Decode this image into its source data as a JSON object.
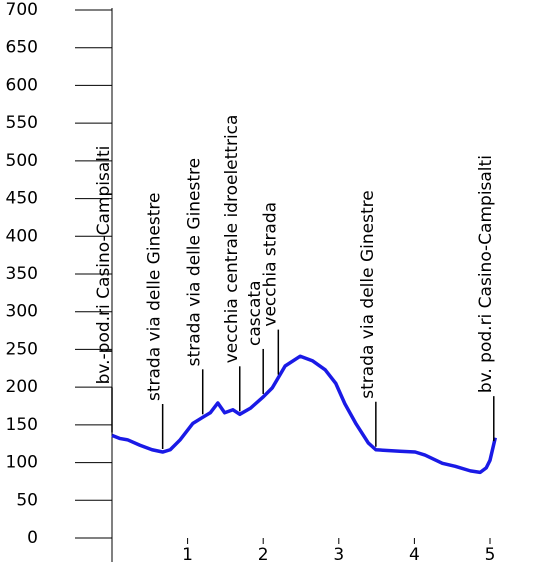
{
  "chart_data": {
    "type": "line",
    "x": [
      0,
      0.1,
      0.21,
      0.37,
      0.53,
      0.67,
      0.77,
      0.9,
      1.07,
      1.2,
      1.3,
      1.4,
      1.49,
      1.6,
      1.69,
      1.83,
      2.0,
      2.12,
      2.29,
      2.49,
      2.65,
      2.82,
      2.96,
      3.08,
      3.23,
      3.39,
      3.49,
      3.81,
      4.01,
      4.14,
      4.37,
      4.54,
      4.74,
      4.87,
      4.95,
      5.0,
      5.07
    ],
    "values": [
      136,
      132,
      130,
      123,
      117,
      114,
      117,
      130,
      152,
      160,
      166,
      179,
      166,
      170,
      164,
      172,
      187,
      199,
      228,
      241,
      235,
      223,
      205,
      178,
      151,
      126,
      117,
      115,
      114,
      110,
      99,
      95,
      89,
      87,
      93,
      103,
      133
    ],
    "color": "#1a1ae6",
    "xlim": [
      0,
      5.6
    ],
    "xticks": [
      1,
      2,
      3,
      4,
      5
    ],
    "ylim": [
      0,
      700
    ],
    "yticks": [
      0,
      50,
      100,
      150,
      200,
      250,
      300,
      350,
      400,
      450,
      500,
      550,
      600,
      650,
      700
    ],
    "annotations": [
      {
        "text": "bv.-pod.ri Casino-Campisalti",
        "x": 0
      },
      {
        "text": "strada via delle Ginestre",
        "x": 0.67
      },
      {
        "text": "strada via delle Ginestre",
        "x": 1.2
      },
      {
        "text": "vecchia centrale idroelettrica",
        "x": 1.69
      },
      {
        "text": "cascata",
        "x": 2.0
      },
      {
        "text": "vecchia strada",
        "x": 2.2
      },
      {
        "text": "strada via delle Ginestre",
        "x": 3.49
      },
      {
        "text": "bv. pod.ri Casino-Campisalti",
        "x": 5.05
      }
    ]
  }
}
